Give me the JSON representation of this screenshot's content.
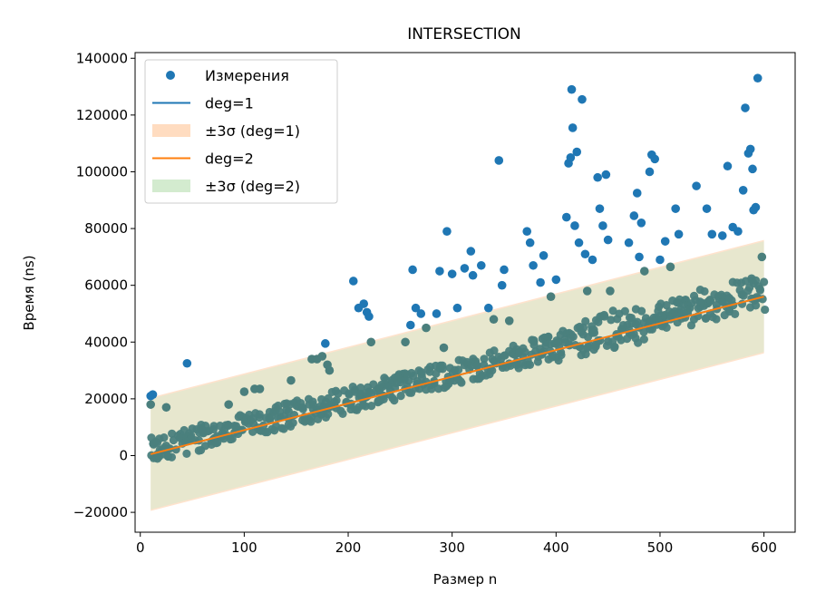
{
  "chart_data": {
    "type": "scatter",
    "title": "INTERSECTION",
    "xlabel": "Размер n",
    "ylabel": "Время (ns)",
    "xlim": [
      -5,
      630
    ],
    "ylim": [
      -27000,
      142000
    ],
    "xticks": [
      0,
      100,
      200,
      300,
      400,
      500,
      600
    ],
    "yticks": [
      -20000,
      0,
      20000,
      40000,
      60000,
      80000,
      100000,
      120000,
      140000
    ],
    "xtick_labels": [
      "0",
      "100",
      "200",
      "300",
      "400",
      "500",
      "600"
    ],
    "ytick_labels": [
      "−20000",
      "0",
      "20000",
      "40000",
      "60000",
      "80000",
      "100000",
      "120000",
      "140000"
    ],
    "grid": false,
    "legend_position": "top-left",
    "legend": [
      {
        "label": "Измерения",
        "kind": "marker",
        "color": "#1f77b4"
      },
      {
        "label": "deg=1",
        "kind": "line",
        "color": "#1f77b4"
      },
      {
        "label": "±3σ (deg=1)",
        "kind": "band",
        "color": "#ffdcc0"
      },
      {
        "label": "deg=2",
        "kind": "line",
        "color": "#ff7f0e"
      },
      {
        "label": "±3σ (deg=2)",
        "kind": "band",
        "color": "#d3ebcf"
      }
    ],
    "series": [
      {
        "name": "Измерения",
        "kind": "scatter",
        "color": "#1f77b4",
        "note_n_range": [
          10,
          600
        ],
        "points": [
          [
            10,
            21000
          ],
          [
            10,
            18000
          ],
          [
            12,
            21500
          ],
          [
            25,
            17000
          ],
          [
            45,
            32500
          ],
          [
            60,
            9000
          ],
          [
            85,
            18000
          ],
          [
            100,
            22500
          ],
          [
            110,
            23500
          ],
          [
            115,
            23500
          ],
          [
            145,
            26500
          ],
          [
            165,
            34000
          ],
          [
            170,
            34000
          ],
          [
            175,
            35000
          ],
          [
            178,
            39500
          ],
          [
            180,
            32000
          ],
          [
            182,
            30000
          ],
          [
            205,
            61500
          ],
          [
            210,
            52000
          ],
          [
            215,
            53500
          ],
          [
            218,
            50500
          ],
          [
            220,
            49000
          ],
          [
            222,
            40000
          ],
          [
            255,
            40000
          ],
          [
            260,
            46000
          ],
          [
            262,
            65500
          ],
          [
            265,
            52000
          ],
          [
            270,
            50000
          ],
          [
            275,
            45000
          ],
          [
            285,
            50000
          ],
          [
            288,
            65000
          ],
          [
            292,
            38000
          ],
          [
            295,
            79000
          ],
          [
            300,
            64000
          ],
          [
            305,
            52000
          ],
          [
            312,
            66000
          ],
          [
            318,
            72000
          ],
          [
            320,
            63500
          ],
          [
            328,
            67000
          ],
          [
            335,
            52000
          ],
          [
            340,
            48000
          ],
          [
            345,
            104000
          ],
          [
            348,
            60000
          ],
          [
            350,
            65500
          ],
          [
            355,
            47500
          ],
          [
            372,
            79000
          ],
          [
            375,
            75000
          ],
          [
            378,
            67000
          ],
          [
            385,
            61000
          ],
          [
            388,
            70500
          ],
          [
            395,
            56000
          ],
          [
            400,
            62000
          ],
          [
            410,
            84000
          ],
          [
            412,
            103000
          ],
          [
            414,
            105000
          ],
          [
            415,
            129000
          ],
          [
            416,
            115500
          ],
          [
            418,
            81000
          ],
          [
            420,
            107000
          ],
          [
            422,
            75000
          ],
          [
            425,
            125500
          ],
          [
            428,
            71000
          ],
          [
            430,
            58000
          ],
          [
            435,
            69000
          ],
          [
            440,
            98000
          ],
          [
            442,
            87000
          ],
          [
            445,
            81000
          ],
          [
            448,
            99000
          ],
          [
            450,
            76000
          ],
          [
            452,
            58000
          ],
          [
            470,
            75000
          ],
          [
            475,
            84500
          ],
          [
            478,
            92500
          ],
          [
            480,
            70000
          ],
          [
            482,
            82000
          ],
          [
            485,
            65000
          ],
          [
            490,
            100000
          ],
          [
            492,
            106000
          ],
          [
            495,
            104500
          ],
          [
            500,
            69000
          ],
          [
            505,
            75500
          ],
          [
            510,
            66500
          ],
          [
            515,
            87000
          ],
          [
            518,
            78000
          ],
          [
            535,
            95000
          ],
          [
            545,
            87000
          ],
          [
            550,
            78000
          ],
          [
            560,
            77500
          ],
          [
            565,
            102000
          ],
          [
            570,
            80500
          ],
          [
            575,
            79000
          ],
          [
            580,
            93500
          ],
          [
            582,
            122500
          ],
          [
            585,
            106500
          ],
          [
            587,
            108000
          ],
          [
            589,
            101000
          ],
          [
            590,
            86500
          ],
          [
            592,
            87500
          ],
          [
            594,
            133000
          ],
          [
            598,
            70000
          ]
        ]
      },
      {
        "name": "deg=1",
        "kind": "line",
        "color": "#1f77b4",
        "x": [
          10,
          600
        ],
        "y": [
          500,
          56000
        ]
      },
      {
        "name": "deg=2",
        "kind": "line",
        "color": "#ff7f0e",
        "x": [
          10,
          600
        ],
        "y": [
          500,
          56000
        ]
      },
      {
        "name": "±3σ (deg=1)",
        "kind": "band",
        "color": "#ffdcc0",
        "x": [
          10,
          600
        ],
        "lower": [
          -19500,
          36000
        ],
        "upper": [
          20500,
          76000
        ]
      },
      {
        "name": "±3σ (deg=2)",
        "kind": "band",
        "color": "#d3ebcf",
        "x": [
          10,
          600
        ],
        "lower": [
          -19000,
          36500
        ],
        "upper": [
          20000,
          75500
        ]
      }
    ]
  }
}
